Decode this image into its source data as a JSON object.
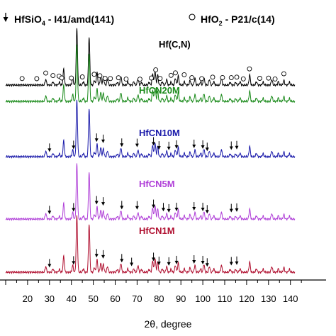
{
  "chart_data": {
    "type": "line",
    "title": "",
    "xlabel": "2θ, degree",
    "ylabel": "",
    "xlim": [
      10,
      140
    ],
    "x_ticks_visible": [
      20,
      30,
      40,
      50,
      60,
      70,
      80,
      90,
      100,
      110,
      120,
      130,
      140
    ],
    "x_tick_labels": [
      "20",
      "30",
      "40",
      "50",
      "60",
      "70",
      "80",
      "90",
      "100",
      "110",
      "120",
      "130",
      "140"
    ],
    "grid": false,
    "legend": {
      "placement": "top",
      "entries": [
        {
          "marker": "down-arrow",
          "label": "HfSiO",
          "sub": "4",
          "suffix": " - I41/amd(141)"
        },
        {
          "marker": "open-circle",
          "label": "HfO",
          "sub": "2",
          "suffix": " - P21/c(14)"
        }
      ]
    },
    "peaks": [
      {
        "x": 28.3,
        "h": 0.1
      },
      {
        "x": 31.6,
        "h": 0.06
      },
      {
        "x": 34.5,
        "h": 0.05
      },
      {
        "x": 36.5,
        "h": 0.28
      },
      {
        "x": 40.6,
        "h": 0.12
      },
      {
        "x": 42.5,
        "h": 1.0
      },
      {
        "x": 45.5,
        "h": 0.06
      },
      {
        "x": 48.1,
        "h": 0.85
      },
      {
        "x": 50.5,
        "h": 0.08
      },
      {
        "x": 51.7,
        "h": 0.22
      },
      {
        "x": 53.4,
        "h": 0.16
      },
      {
        "x": 54.6,
        "h": 0.14
      },
      {
        "x": 56.5,
        "h": 0.1
      },
      {
        "x": 61.0,
        "h": 0.05
      },
      {
        "x": 62.6,
        "h": 0.16
      },
      {
        "x": 65.8,
        "h": 0.06
      },
      {
        "x": 68.5,
        "h": 0.06
      },
      {
        "x": 70.4,
        "h": 0.12
      },
      {
        "x": 72.0,
        "h": 0.05
      },
      {
        "x": 75.5,
        "h": 0.05
      },
      {
        "x": 77.1,
        "h": 0.2
      },
      {
        "x": 78.2,
        "h": 0.24
      },
      {
        "x": 79.4,
        "h": 0.18
      },
      {
        "x": 81.5,
        "h": 0.06
      },
      {
        "x": 83.5,
        "h": 0.1
      },
      {
        "x": 85.5,
        "h": 0.05
      },
      {
        "x": 87.5,
        "h": 0.12
      },
      {
        "x": 88.8,
        "h": 0.16
      },
      {
        "x": 91.6,
        "h": 0.06
      },
      {
        "x": 94.2,
        "h": 0.08
      },
      {
        "x": 96.4,
        "h": 0.12
      },
      {
        "x": 99.0,
        "h": 0.06
      },
      {
        "x": 100.5,
        "h": 0.14
      },
      {
        "x": 103.0,
        "h": 0.1
      },
      {
        "x": 105.0,
        "h": 0.06
      },
      {
        "x": 108.5,
        "h": 0.12
      },
      {
        "x": 112.5,
        "h": 0.05
      },
      {
        "x": 115.0,
        "h": 0.05
      },
      {
        "x": 117.0,
        "h": 0.06
      },
      {
        "x": 121.4,
        "h": 0.18
      },
      {
        "x": 124.5,
        "h": 0.06
      },
      {
        "x": 127.5,
        "h": 0.05
      },
      {
        "x": 131.5,
        "h": 0.1
      },
      {
        "x": 134.5,
        "h": 0.06
      },
      {
        "x": 137.0,
        "h": 0.08
      },
      {
        "x": 139.5,
        "h": 0.05
      }
    ],
    "series": [
      {
        "name": "Hf(C,N)",
        "color": "#000000",
        "label_color": "#000000",
        "scale": 1.0
      },
      {
        "name": "HfCN20M",
        "color": "#1a8a1a",
        "label_color": "#1a8a1a",
        "scale": 1.0
      },
      {
        "name": "HfCN10M",
        "color": "#1a1aaa",
        "label_color": "#1a1aaa",
        "scale": 1.0
      },
      {
        "name": "HfCN5M",
        "color": "#b040d8",
        "label_color": "#b040d8",
        "scale": 0.98
      },
      {
        "name": "HfCN1M",
        "color": "#b01030",
        "label_color": "#b01030",
        "scale": 1.0
      }
    ],
    "hfo2_circle_markers": [
      {
        "series": "Hf(C,N)",
        "x": [
          17.5,
          24.2,
          28.3,
          31.6,
          34.4,
          35.6,
          40.0,
          45.0,
          50.4,
          53.0,
          55.4,
          57.8,
          61.5,
          65.0,
          71.3,
          76.5,
          78.5,
          80.5,
          85.5,
          87.5,
          91.5,
          95.0,
          99.5,
          104.5,
          109.0,
          113.0,
          115.5,
          118.5,
          121.3,
          126.0,
          130.0,
          133.0,
          137.0
        ]
      }
    ],
    "hfsio4_arrow_markers": [
      {
        "series": "HfCN10M",
        "x": [
          30.0,
          41.0,
          51.5,
          54.5,
          63.0,
          70.0,
          77.5,
          80.0,
          84.5,
          88.0,
          96.0,
          100.0,
          102.0,
          113.0,
          115.5
        ]
      },
      {
        "series": "HfCN5M",
        "x": [
          30.0,
          41.0,
          51.5,
          54.5,
          63.0,
          70.0,
          77.5,
          82.0,
          84.5,
          88.0,
          96.0,
          100.0,
          102.0,
          113.0,
          115.5
        ]
      },
      {
        "series": "HfCN1M",
        "x": [
          30.0,
          41.0,
          51.5,
          54.5,
          63.0,
          67.5,
          77.5,
          80.0,
          84.5,
          88.0,
          96.0,
          100.0,
          102.0,
          113.0,
          115.5
        ]
      }
    ]
  }
}
